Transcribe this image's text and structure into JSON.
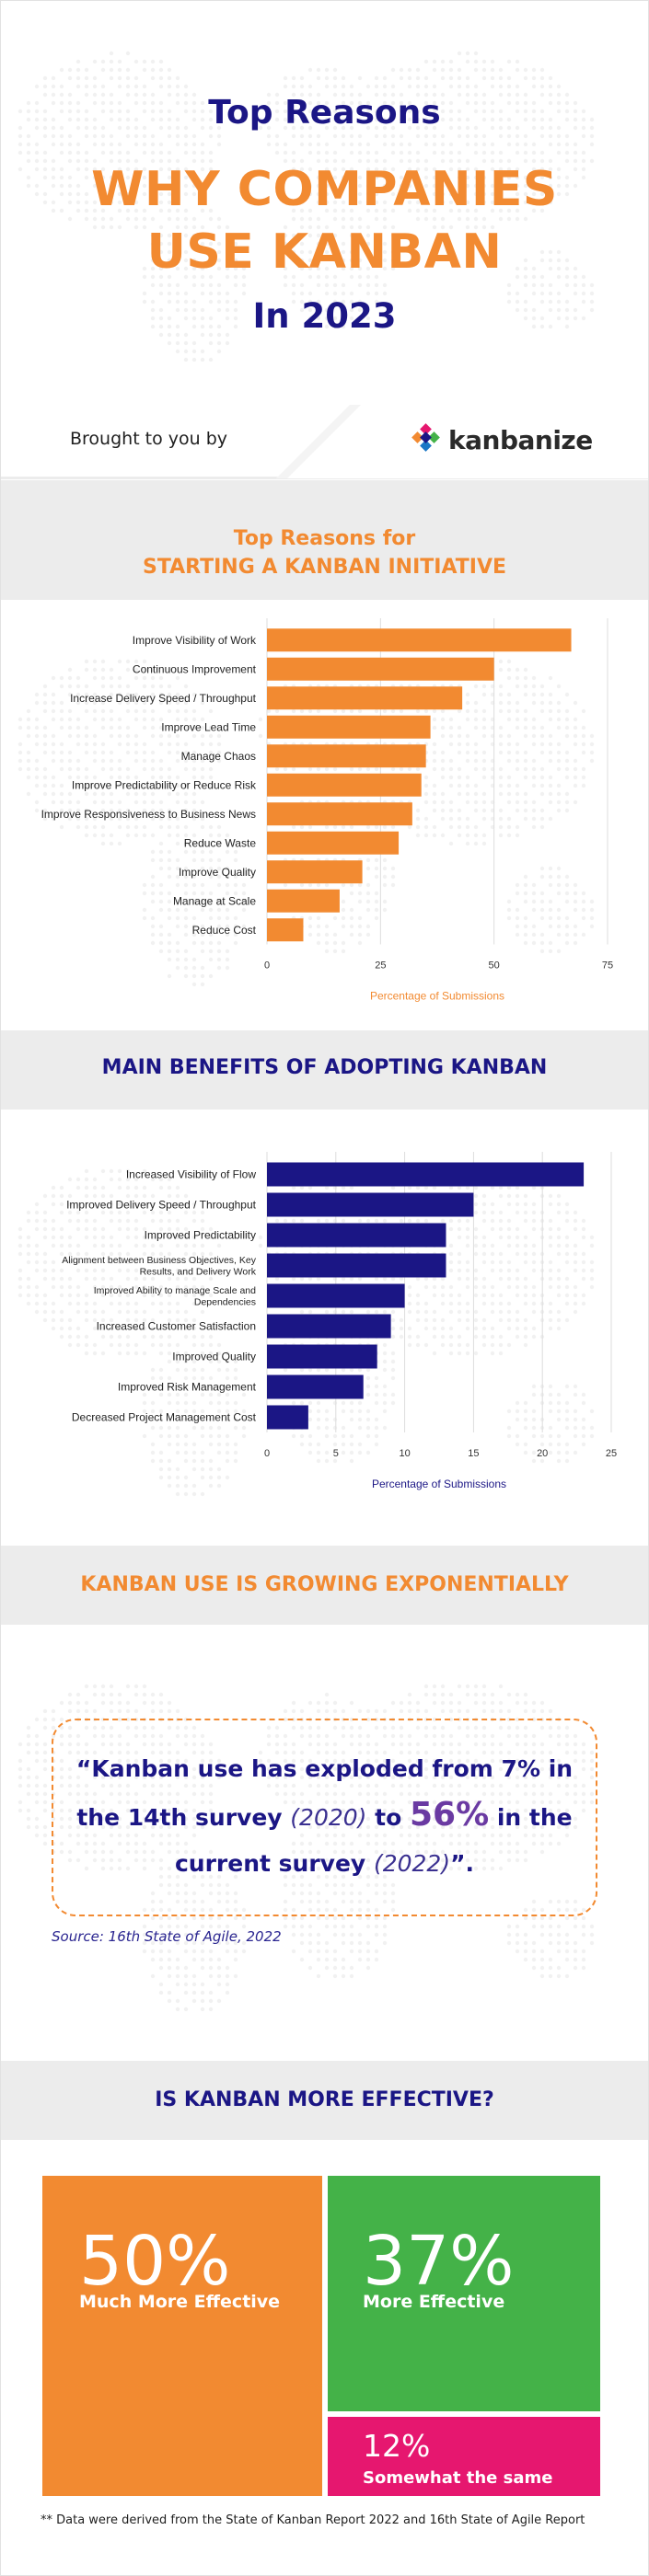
{
  "hero": {
    "line1": "Top Reasons",
    "line2a": "WHY COMPANIES",
    "line2b": "USE KANBAN",
    "line3": "In 2023"
  },
  "brought_by": {
    "label": "Brought to you by",
    "brand": "kanbanize"
  },
  "colors": {
    "navy": "#1b1685",
    "orange": "#f28a31",
    "green": "#44b248",
    "pink": "#e6176f",
    "grey_band": "#ececec"
  },
  "section1": {
    "title_line1": "Top Reasons for",
    "title_line2": "STARTING A KANBAN INITIATIVE"
  },
  "section2": {
    "title": "MAIN BENEFITS OF ADOPTING KANBAN"
  },
  "section3": {
    "title": "KANBAN USE IS GROWING EXPONENTIALLY",
    "quote_open": "“Kanban use has exploded from 7% in the 14th survey ",
    "quote_year1": "(2020)",
    "quote_mid": " to ",
    "quote_big": "56%",
    "quote_after": " in the current survey ",
    "quote_year2": "(2022)",
    "quote_close": "”.",
    "source": "Source: 16th State of Agile, 2022"
  },
  "section4": {
    "title": "IS KANBAN MORE EFFECTIVE?",
    "tiles": [
      {
        "pct": "50%",
        "label": "Much More Effective",
        "color": "#f28a31"
      },
      {
        "pct": "37%",
        "label": "More Effective",
        "color": "#44b248"
      },
      {
        "pct": "12%",
        "label": "Somewhat the same",
        "color": "#e6176f"
      }
    ],
    "footnote": "** Data were derived from the State of Kanban Report 2022 and 16th State of Agile Report"
  },
  "chart_data": [
    {
      "type": "bar",
      "orientation": "horizontal",
      "title": "Top Reasons for STARTING A KANBAN INITIATIVE",
      "xlabel": "Percentage of Submissions",
      "ylabel": "",
      "xlim": [
        0,
        75
      ],
      "xticks": [
        0,
        25,
        50,
        75
      ],
      "grid": true,
      "color": "#f28a31",
      "categories": [
        "Improve Visibility of Work",
        "Continuous Improvement",
        "Increase Delivery Speed / Throughput",
        "Improve Lead Time",
        "Manage Chaos",
        "Improve Predictability or Reduce Risk",
        "Improve Responsiveness to Business News",
        "Reduce Waste",
        "Improve Quality",
        "Manage at Scale",
        "Reduce Cost"
      ],
      "values": [
        67,
        50,
        43,
        36,
        35,
        34,
        32,
        29,
        21,
        16,
        8
      ]
    },
    {
      "type": "bar",
      "orientation": "horizontal",
      "title": "MAIN BENEFITS OF ADOPTING KANBAN",
      "xlabel": "Percentage of Submissions",
      "ylabel": "",
      "xlim": [
        0,
        25
      ],
      "xticks": [
        0,
        5,
        10,
        15,
        20,
        25
      ],
      "grid": true,
      "color": "#1b1685",
      "categories": [
        [
          "Increased Visibility of Flow"
        ],
        [
          "Improved Delivery Speed / Throughput"
        ],
        [
          "Improved Predictability"
        ],
        [
          "Alignment between Business Objectives, Key",
          "Results, and Delivery Work"
        ],
        [
          "Improved Ability to manage Scale and",
          "Dependencies"
        ],
        [
          "Increased Customer Satisfaction"
        ],
        [
          "Improved Quality"
        ],
        [
          "Improved Risk Management"
        ],
        [
          "Decreased Project Management Cost"
        ]
      ],
      "values": [
        23,
        15,
        13,
        13,
        10,
        9,
        8,
        7,
        3
      ]
    }
  ]
}
